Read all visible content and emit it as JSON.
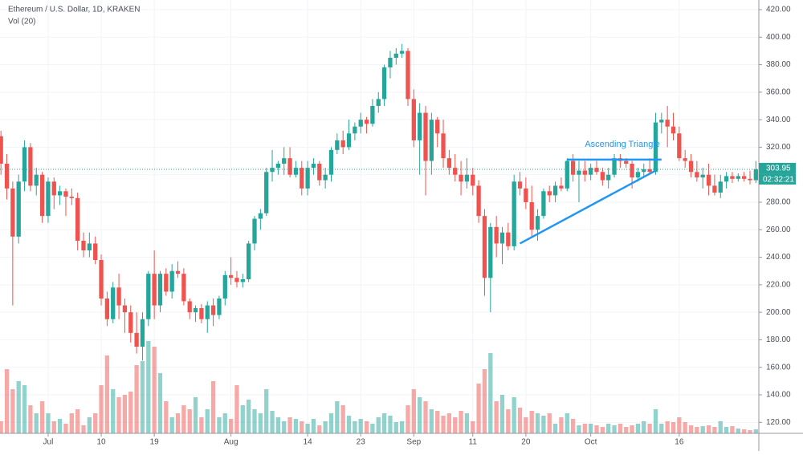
{
  "chart_data": {
    "type": "candlestick",
    "title": "Ethereum / U.S. Dollar, 1D, KRAKEN",
    "subtitle": "Vol (20)",
    "up_color": "#26a69a",
    "down_color": "#ef5350",
    "grid": true,
    "open": [
      328,
      308,
      290,
      255,
      295,
      320,
      292,
      300,
      270,
      295,
      285,
      288,
      284,
      283,
      252,
      245,
      250,
      238,
      210,
      195,
      218,
      205,
      200,
      185,
      175,
      195,
      228,
      205,
      228,
      215,
      230,
      228,
      208,
      200,
      203,
      195,
      205,
      198,
      210,
      227,
      225,
      222,
      224,
      250,
      268,
      272,
      302,
      305,
      308,
      312,
      300,
      305,
      290,
      305,
      308,
      296,
      300,
      318,
      325,
      320,
      330,
      335,
      340,
      337,
      350,
      355,
      378,
      385,
      388,
      390,
      355,
      325,
      345,
      310,
      340,
      330,
      312,
      305,
      300,
      295,
      300,
      292,
      270,
      225,
      262,
      250,
      258,
      248,
      295,
      290,
      280,
      260,
      270,
      288,
      285,
      292,
      290,
      310,
      300,
      303,
      300,
      305,
      302,
      296,
      300,
      312,
      310,
      308,
      298,
      302,
      304,
      302,
      338,
      340,
      335,
      330,
      312,
      310,
      302,
      298,
      300,
      292,
      287,
      295,
      299,
      297,
      299,
      297,
      296
    ],
    "high": [
      332,
      315,
      295,
      300,
      325,
      323,
      305,
      302,
      298,
      298,
      292,
      290,
      290,
      287,
      258,
      258,
      255,
      242,
      215,
      222,
      228,
      210,
      205,
      200,
      200,
      230,
      245,
      230,
      232,
      235,
      237,
      232,
      210,
      205,
      206,
      208,
      210,
      212,
      230,
      240,
      230,
      228,
      252,
      270,
      275,
      305,
      318,
      310,
      320,
      320,
      310,
      310,
      310,
      312,
      310,
      305,
      320,
      330,
      332,
      340,
      338,
      345,
      342,
      355,
      360,
      380,
      390,
      392,
      395,
      392,
      362,
      352,
      350,
      345,
      342,
      340,
      318,
      315,
      310,
      312,
      305,
      296,
      275,
      265,
      270,
      262,
      265,
      300,
      302,
      298,
      292,
      275,
      290,
      292,
      295,
      298,
      312,
      315,
      310,
      310,
      308,
      310,
      305,
      305,
      315,
      315,
      312,
      310,
      305,
      308,
      312,
      345,
      345,
      350,
      345,
      335,
      318,
      315,
      310,
      305,
      308,
      300,
      300,
      302,
      302,
      301,
      302,
      303,
      310
    ],
    "low": [
      300,
      282,
      205,
      250,
      288,
      288,
      285,
      265,
      265,
      275,
      278,
      270,
      278,
      245,
      240,
      240,
      235,
      205,
      190,
      192,
      195,
      185,
      178,
      170,
      165,
      190,
      195,
      200,
      212,
      210,
      225,
      205,
      195,
      193,
      192,
      185,
      190,
      195,
      205,
      220,
      218,
      218,
      222,
      245,
      260,
      270,
      295,
      300,
      300,
      298,
      298,
      285,
      285,
      300,
      292,
      290,
      295,
      315,
      315,
      318,
      325,
      330,
      330,
      335,
      345,
      350,
      370,
      380,
      385,
      350,
      320,
      300,
      285,
      300,
      320,
      305,
      300,
      295,
      285,
      290,
      285,
      265,
      212,
      200,
      240,
      235,
      245,
      245,
      285,
      275,
      255,
      252,
      268,
      280,
      280,
      288,
      288,
      295,
      280,
      295,
      296,
      300,
      292,
      290,
      298,
      305,
      305,
      290,
      295,
      298,
      300,
      300,
      330,
      320,
      325,
      310,
      305,
      298,
      295,
      290,
      285,
      285,
      283,
      290,
      294,
      295,
      295,
      293,
      294
    ],
    "close": [
      308,
      290,
      255,
      295,
      320,
      292,
      300,
      270,
      295,
      285,
      288,
      284,
      283,
      252,
      245,
      250,
      238,
      210,
      195,
      218,
      205,
      200,
      185,
      175,
      195,
      228,
      205,
      228,
      215,
      230,
      228,
      208,
      200,
      203,
      195,
      205,
      198,
      210,
      227,
      225,
      222,
      224,
      250,
      268,
      272,
      302,
      305,
      308,
      312,
      300,
      305,
      290,
      305,
      308,
      296,
      300,
      318,
      325,
      320,
      330,
      335,
      340,
      337,
      350,
      355,
      378,
      385,
      388,
      390,
      355,
      325,
      345,
      310,
      340,
      330,
      312,
      305,
      300,
      295,
      300,
      292,
      270,
      225,
      262,
      250,
      258,
      248,
      295,
      290,
      280,
      260,
      270,
      288,
      285,
      292,
      290,
      310,
      300,
      303,
      300,
      305,
      302,
      296,
      300,
      312,
      310,
      308,
      298,
      302,
      304,
      302,
      338,
      340,
      335,
      330,
      312,
      310,
      302,
      298,
      300,
      292,
      287,
      295,
      299,
      297,
      299,
      297,
      296,
      303.95
    ],
    "volume": [
      15,
      80,
      55,
      65,
      60,
      35,
      25,
      40,
      25,
      15,
      18,
      12,
      25,
      30,
      10,
      20,
      25,
      60,
      97,
      55,
      45,
      48,
      52,
      85,
      90,
      115,
      108,
      75,
      40,
      20,
      25,
      35,
      30,
      45,
      20,
      30,
      65,
      20,
      25,
      18,
      60,
      35,
      42,
      30,
      25,
      55,
      28,
      20,
      15,
      20,
      18,
      15,
      12,
      18,
      10,
      15,
      25,
      40,
      35,
      22,
      15,
      18,
      15,
      12,
      20,
      25,
      22,
      14,
      15,
      35,
      55,
      45,
      40,
      30,
      28,
      22,
      25,
      20,
      28,
      25,
      15,
      62,
      80,
      100,
      40,
      48,
      30,
      45,
      32,
      20,
      28,
      25,
      22,
      25,
      12,
      20,
      25,
      18,
      10,
      12,
      12,
      10,
      8,
      12,
      10,
      12,
      8,
      10,
      12,
      15,
      12,
      30,
      12,
      15,
      14,
      20,
      14,
      10,
      8,
      9,
      10,
      8,
      15,
      8,
      9,
      6,
      5,
      4,
      5
    ],
    "volume_lim": [
      0,
      130
    ],
    "xlim": [
      -0.16,
      128.5
    ],
    "ylim": [
      112,
      427
    ],
    "yticks": [
      {
        "value": 120,
        "label": "120.00"
      },
      {
        "value": 140,
        "label": "140.00"
      },
      {
        "value": 160,
        "label": "160.00"
      },
      {
        "value": 180,
        "label": "180.00"
      },
      {
        "value": 200,
        "label": "200.00"
      },
      {
        "value": 220,
        "label": "220.00"
      },
      {
        "value": 240,
        "label": "240.00"
      },
      {
        "value": 260,
        "label": "260.00"
      },
      {
        "value": 280,
        "label": "280.00"
      },
      {
        "value": 300,
        "label": "300.00"
      },
      {
        "value": 320,
        "label": "320.00"
      },
      {
        "value": 340,
        "label": "340.00"
      },
      {
        "value": 360,
        "label": "360.00"
      },
      {
        "value": 380,
        "label": "380.00"
      },
      {
        "value": 400,
        "label": "400.00"
      },
      {
        "value": 420,
        "label": "420.00"
      }
    ],
    "xticks": [
      {
        "value": 8,
        "label": "Jul"
      },
      {
        "value": 17,
        "label": "10"
      },
      {
        "value": 26,
        "label": "19"
      },
      {
        "value": 39,
        "label": "Aug"
      },
      {
        "value": 52,
        "label": "14"
      },
      {
        "value": 61,
        "label": "23"
      },
      {
        "value": 70,
        "label": "Sep"
      },
      {
        "value": 80,
        "label": "11"
      },
      {
        "value": 89,
        "label": "20"
      },
      {
        "value": 100,
        "label": "Oct"
      },
      {
        "value": 115,
        "label": "16"
      }
    ],
    "trendlines": [
      {
        "x": [
          88,
          111
        ],
        "y": [
          250,
          303
        ]
      },
      {
        "x": [
          96,
          112
        ],
        "y": [
          311,
          311
        ]
      }
    ],
    "annotation": {
      "text": "Ascending Triangle",
      "x": 99,
      "y": 322
    },
    "countdown": "02:32:21"
  }
}
